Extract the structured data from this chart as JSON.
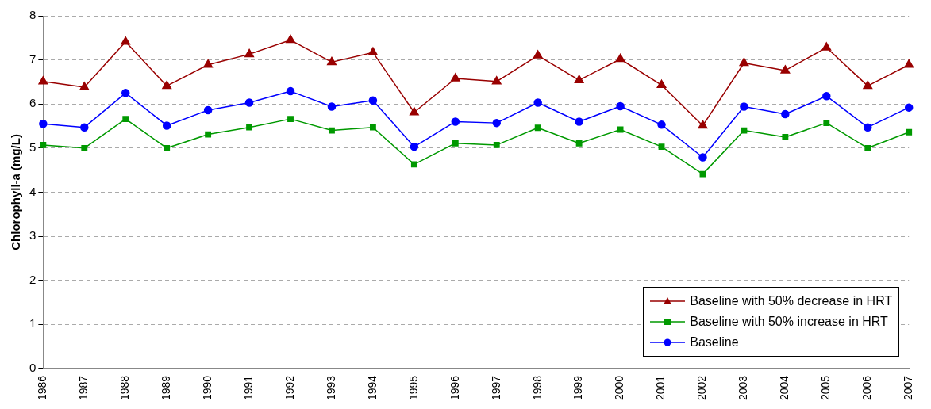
{
  "chart_data": {
    "type": "line",
    "ylabel": "Chlorophyll-a (mg/L)",
    "categories": [
      "1986",
      "1987",
      "1988",
      "1989",
      "1990",
      "1991",
      "1992",
      "1993",
      "1994",
      "1995",
      "1996",
      "1997",
      "1998",
      "1999",
      "2000",
      "2001",
      "2002",
      "2003",
      "2004",
      "2005",
      "2006",
      "2007"
    ],
    "series": [
      {
        "name": "Baseline with 50% decrease in HRT",
        "color": "#990000",
        "marker": "triangle",
        "values": [
          6.51,
          6.38,
          7.41,
          6.41,
          6.89,
          7.13,
          7.45,
          6.95,
          7.17,
          5.81,
          6.58,
          6.51,
          7.1,
          6.54,
          7.02,
          6.43,
          5.51,
          6.93,
          6.76,
          7.28,
          6.41,
          6.89
        ]
      },
      {
        "name": "Baseline with 50% increase in HRT",
        "color": "#009900",
        "marker": "square",
        "values": [
          5.07,
          5.0,
          5.66,
          5.0,
          5.31,
          5.47,
          5.66,
          5.4,
          5.47,
          4.63,
          5.11,
          5.07,
          5.46,
          5.11,
          5.42,
          5.03,
          4.41,
          5.4,
          5.25,
          5.57,
          5.0,
          5.36
        ]
      },
      {
        "name": "Baseline",
        "color": "#0000ff",
        "marker": "circle",
        "values": [
          5.55,
          5.47,
          6.25,
          5.51,
          5.86,
          6.03,
          6.29,
          5.94,
          6.08,
          5.03,
          5.6,
          5.57,
          6.03,
          5.6,
          5.95,
          5.53,
          4.79,
          5.94,
          5.77,
          6.18,
          5.47,
          5.92
        ]
      }
    ],
    "ylim": [
      0,
      8
    ],
    "yticks": [
      0,
      1,
      2,
      3,
      4,
      5,
      6,
      7,
      8
    ],
    "grid": "y",
    "legend": "bottom right",
    "line_style": "solid"
  }
}
